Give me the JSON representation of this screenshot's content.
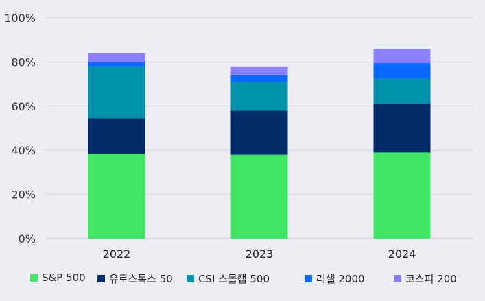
{
  "chart_data": {
    "type": "bar",
    "stacked": true,
    "categories": [
      "2022",
      "2023",
      "2024"
    ],
    "series": [
      {
        "name": "S&P 500",
        "color": "#3ee866",
        "values": [
          38.5,
          38.0,
          39.0
        ]
      },
      {
        "name": "유로스톡스 50",
        "color": "#012d6b",
        "values": [
          16.0,
          20.0,
          22.0
        ]
      },
      {
        "name": "CSI 스몰캡 500",
        "color": "#0092aa",
        "values": [
          23.5,
          13.0,
          11.5
        ]
      },
      {
        "name": "러셀 2000",
        "color": "#0a6aff",
        "values": [
          2.0,
          3.0,
          7.0
        ]
      },
      {
        "name": "코스피 200",
        "color": "#8a80ff",
        "values": [
          4.0,
          4.0,
          6.5
        ]
      }
    ],
    "ylim": [
      0,
      100
    ],
    "yticks": [
      "0%",
      "20%",
      "40%",
      "60%",
      "80%",
      "100%"
    ],
    "ytick_values": [
      0,
      20,
      40,
      60,
      80,
      100
    ],
    "grid": true,
    "legend_position": "bottom",
    "title": "",
    "xlabel": "",
    "ylabel": ""
  }
}
